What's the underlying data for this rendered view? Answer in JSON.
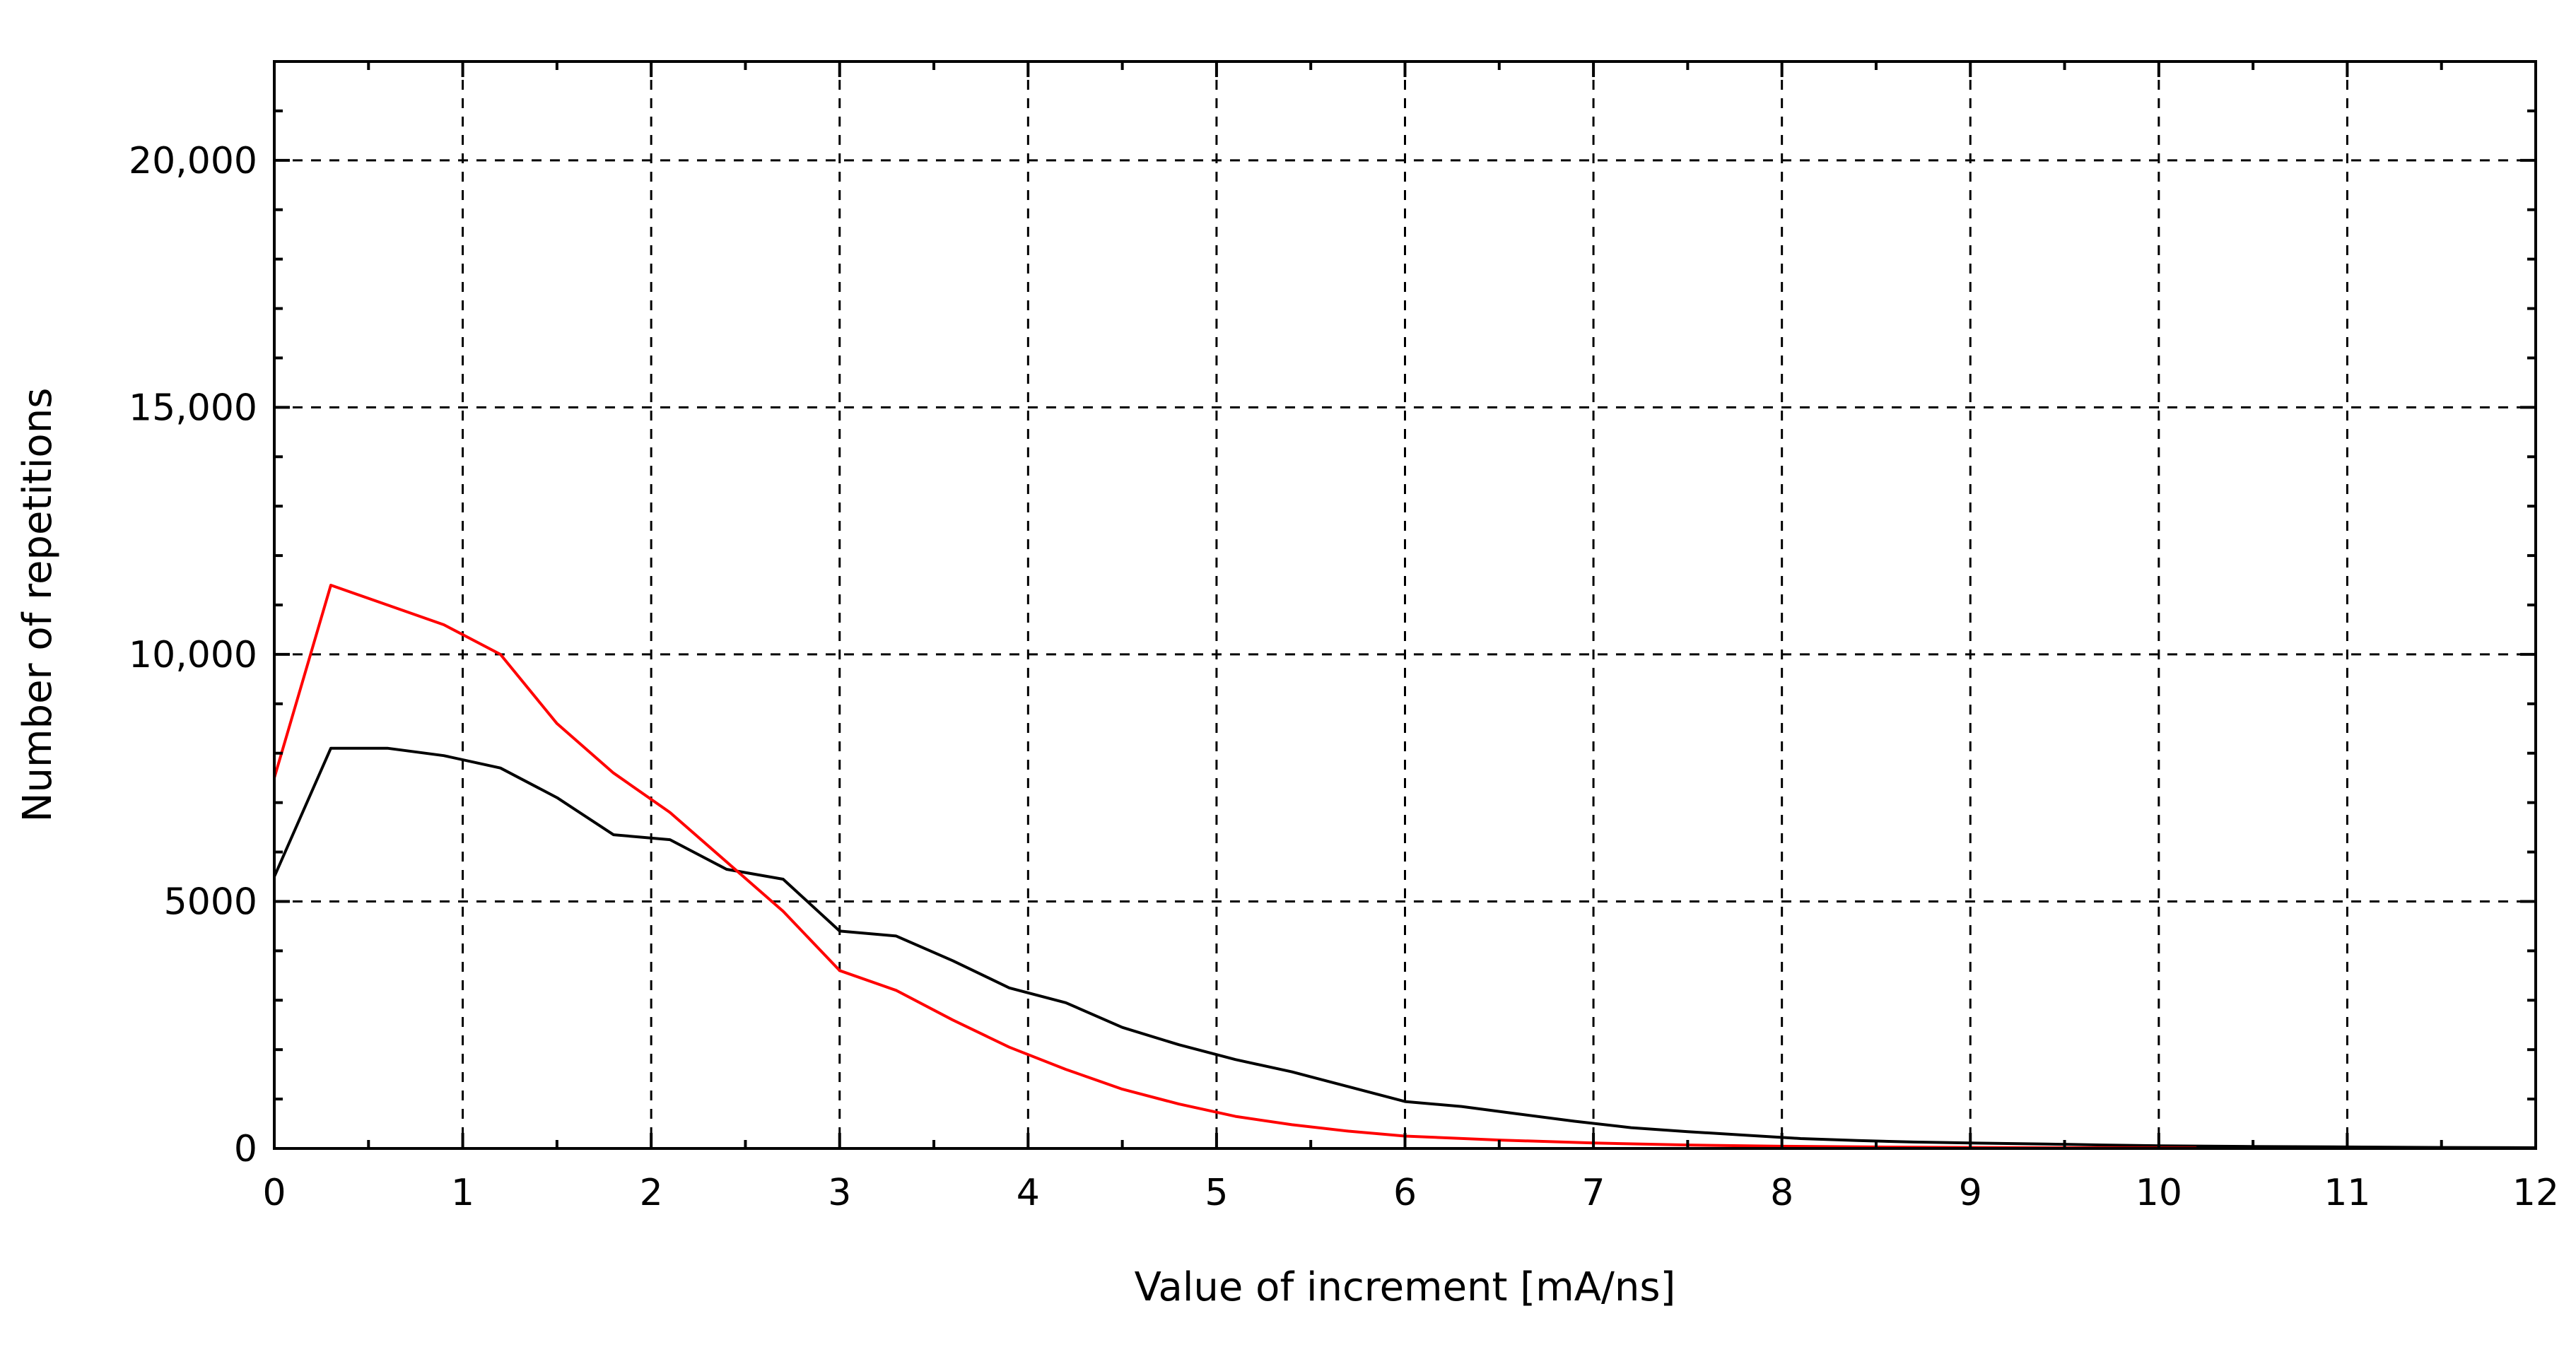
{
  "chart_data": {
    "type": "line",
    "title": "",
    "xlabel": "Value of increment [mA/ns]",
    "ylabel": "Number of repetitions",
    "xlim": [
      0,
      12
    ],
    "ylim": [
      0,
      22000
    ],
    "grid": true,
    "x_ticks": [
      0,
      1,
      2,
      3,
      4,
      5,
      6,
      7,
      8,
      9,
      10,
      11,
      12
    ],
    "x_tick_labels": [
      "0",
      "1",
      "2",
      "3",
      "4",
      "5",
      "6",
      "7",
      "8",
      "9",
      "10",
      "11",
      "12"
    ],
    "y_ticks": [
      0,
      5000,
      10000,
      15000,
      20000
    ],
    "y_tick_labels": [
      "0",
      "5000",
      "10,000",
      "15,000",
      "20,000"
    ],
    "series": [
      {
        "color": "#000000",
        "points": [
          [
            0,
            5500
          ],
          [
            0.3,
            8100
          ],
          [
            0.6,
            8100
          ],
          [
            0.9,
            7950
          ],
          [
            1.2,
            7700
          ],
          [
            1.5,
            7100
          ],
          [
            1.8,
            6350
          ],
          [
            2.1,
            6250
          ],
          [
            2.4,
            5650
          ],
          [
            2.7,
            5450
          ],
          [
            3.0,
            4400
          ],
          [
            3.3,
            4300
          ],
          [
            3.6,
            3800
          ],
          [
            3.9,
            3250
          ],
          [
            4.2,
            2950
          ],
          [
            4.5,
            2450
          ],
          [
            4.8,
            2100
          ],
          [
            5.1,
            1800
          ],
          [
            5.4,
            1550
          ],
          [
            5.7,
            1250
          ],
          [
            6.0,
            950
          ],
          [
            6.3,
            850
          ],
          [
            6.6,
            700
          ],
          [
            6.9,
            550
          ],
          [
            7.2,
            420
          ],
          [
            7.5,
            340
          ],
          [
            7.8,
            270
          ],
          [
            8.1,
            200
          ],
          [
            8.4,
            160
          ],
          [
            8.7,
            130
          ],
          [
            9.0,
            110
          ],
          [
            9.4,
            90
          ],
          [
            9.7,
            70
          ],
          [
            10.0,
            55
          ],
          [
            10.5,
            40
          ],
          [
            11.0,
            30
          ],
          [
            11.5,
            20
          ],
          [
            12.0,
            15
          ]
        ]
      },
      {
        "color": "#ff0000",
        "points": [
          [
            0,
            7500
          ],
          [
            0.3,
            11400
          ],
          [
            0.6,
            11000
          ],
          [
            0.9,
            10600
          ],
          [
            1.2,
            10000
          ],
          [
            1.5,
            8600
          ],
          [
            1.8,
            7600
          ],
          [
            2.1,
            6800
          ],
          [
            2.4,
            5800
          ],
          [
            2.7,
            4800
          ],
          [
            3.0,
            3600
          ],
          [
            3.3,
            3200
          ],
          [
            3.6,
            2600
          ],
          [
            3.9,
            2050
          ],
          [
            4.2,
            1600
          ],
          [
            4.5,
            1200
          ],
          [
            4.8,
            900
          ],
          [
            5.1,
            650
          ],
          [
            5.4,
            480
          ],
          [
            5.7,
            350
          ],
          [
            6.0,
            250
          ],
          [
            6.5,
            170
          ],
          [
            7.0,
            110
          ],
          [
            7.5,
            70
          ],
          [
            8.0,
            45
          ],
          [
            8.5,
            30
          ],
          [
            9.0,
            20
          ],
          [
            9.5,
            15
          ],
          [
            10.0,
            10
          ],
          [
            10.2,
            8
          ]
        ]
      }
    ]
  }
}
